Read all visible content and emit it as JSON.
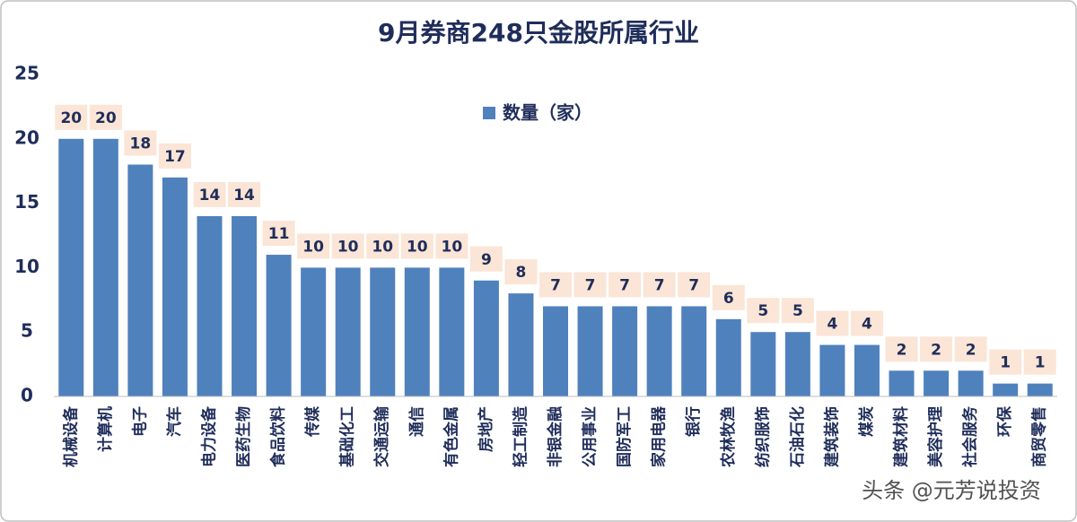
{
  "chart_data": {
    "type": "bar",
    "title": "9月券商248只金股所属行业",
    "categories": [
      "机械设备",
      "计算机",
      "电子",
      "汽车",
      "电力设备",
      "医药生物",
      "食品饮料",
      "传媒",
      "基础化工",
      "交通运输",
      "通信",
      "有色金属",
      "房地产",
      "轻工制造",
      "非银金融",
      "公用事业",
      "国防军工",
      "家用电器",
      "银行",
      "农林牧渔",
      "纺织服饰",
      "石油石化",
      "建筑装饰",
      "煤炭",
      "建筑材料",
      "美容护理",
      "社会服务",
      "环保",
      "商贸零售"
    ],
    "series": [
      {
        "name": "数量（家）",
        "color": "#4f81bd",
        "values": [
          20,
          20,
          18,
          17,
          14,
          14,
          11,
          10,
          10,
          10,
          10,
          10,
          9,
          8,
          7,
          7,
          7,
          7,
          7,
          6,
          5,
          5,
          4,
          4,
          2,
          2,
          2,
          1,
          1
        ]
      }
    ],
    "ylim": [
      0,
      25
    ],
    "yticks": [
      0,
      5,
      10,
      15,
      20,
      25
    ],
    "grid": false,
    "legend": "top",
    "watermark": "头条 @元芳说投资"
  }
}
